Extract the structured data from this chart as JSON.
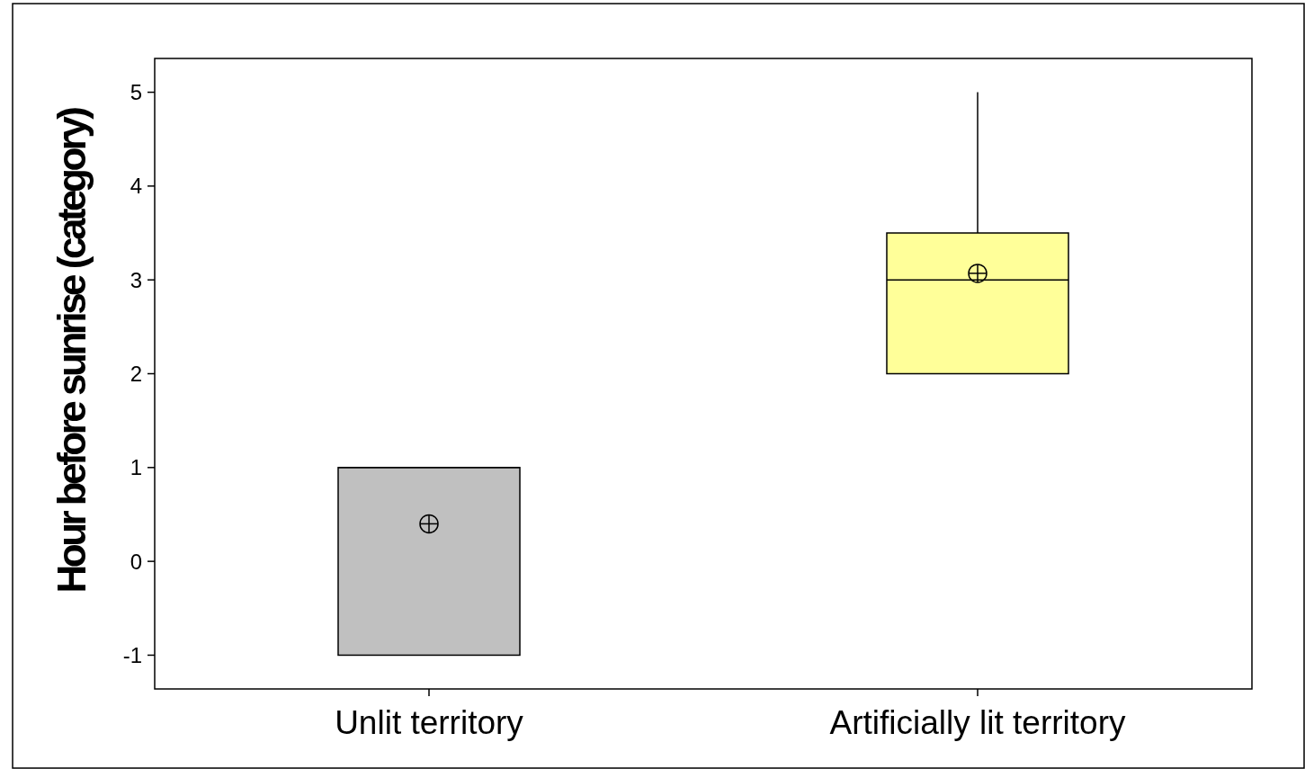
{
  "chart_data": {
    "type": "box",
    "ylabel": "Hour before sunrise (category)",
    "categories": [
      "Unlit territory",
      "Artificially lit territory"
    ],
    "colors": [
      "#c0c0c0",
      "#ffff99"
    ],
    "boxes": [
      {
        "low": -1,
        "q1": -1,
        "median": 1,
        "q3": 1,
        "high": 1,
        "mean": 0.4
      },
      {
        "low": 2,
        "q1": 2,
        "median": 3,
        "q3": 3.5,
        "high": 5,
        "mean": 3.07
      }
    ],
    "ylim": [
      -1.36,
      5.36
    ],
    "yticks": [
      -1,
      0,
      1,
      2,
      3,
      4,
      5
    ],
    "grid": false
  }
}
